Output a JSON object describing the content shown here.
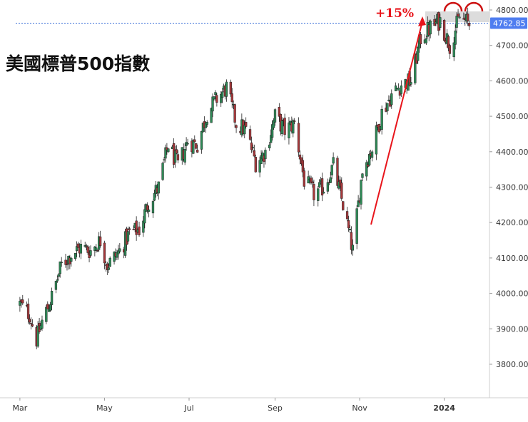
{
  "chart_data": {
    "type": "candlestick",
    "title": "美國標普500指數",
    "x_tick_labels": [
      "Mar",
      "May",
      "Jul",
      "Sep",
      "Nov",
      "2024"
    ],
    "y_tick_labels": [
      "3800.00",
      "3900.00",
      "4000.00",
      "4100.00",
      "4200.00",
      "4300.00",
      "4400.00",
      "4500.00",
      "4600.00",
      "4700.00",
      "4800.00"
    ],
    "y_ticks": [
      3800,
      3900,
      4000,
      4100,
      4200,
      4300,
      4400,
      4500,
      4600,
      4700,
      4800
    ],
    "ylim": [
      3700,
      4830
    ],
    "current_price": "4762.85",
    "annotation_text": "+15%",
    "colors": {
      "up": "#2e8b57",
      "down": "#a8383b",
      "accent": "#e8141b",
      "price_line": "#3a6fd8"
    },
    "close_series": [
      {
        "date": "2023-03-01",
        "value": 3970
      },
      {
        "date": "2023-03-08",
        "value": 3940
      },
      {
        "date": "2023-03-13",
        "value": 3870
      },
      {
        "date": "2023-03-17",
        "value": 3920
      },
      {
        "date": "2023-03-24",
        "value": 3990
      },
      {
        "date": "2023-03-31",
        "value": 4080
      },
      {
        "date": "2023-04-07",
        "value": 4110
      },
      {
        "date": "2023-04-14",
        "value": 4130
      },
      {
        "date": "2023-04-21",
        "value": 4120
      },
      {
        "date": "2023-04-28",
        "value": 4150
      },
      {
        "date": "2023-05-03",
        "value": 4080
      },
      {
        "date": "2023-05-12",
        "value": 4120
      },
      {
        "date": "2023-05-19",
        "value": 4170
      },
      {
        "date": "2023-05-26",
        "value": 4180
      },
      {
        "date": "2023-06-02",
        "value": 4260
      },
      {
        "date": "2023-06-09",
        "value": 4300
      },
      {
        "date": "2023-06-16",
        "value": 4420
      },
      {
        "date": "2023-06-23",
        "value": 4360
      },
      {
        "date": "2023-06-30",
        "value": 4430
      },
      {
        "date": "2023-07-07",
        "value": 4420
      },
      {
        "date": "2023-07-14",
        "value": 4510
      },
      {
        "date": "2023-07-21",
        "value": 4550
      },
      {
        "date": "2023-07-28",
        "value": 4580
      },
      {
        "date": "2023-08-04",
        "value": 4480
      },
      {
        "date": "2023-08-11",
        "value": 4460
      },
      {
        "date": "2023-08-18",
        "value": 4370
      },
      {
        "date": "2023-08-25",
        "value": 4400
      },
      {
        "date": "2023-09-01",
        "value": 4500
      },
      {
        "date": "2023-09-08",
        "value": 4460
      },
      {
        "date": "2023-09-15",
        "value": 4480
      },
      {
        "date": "2023-09-22",
        "value": 4320
      },
      {
        "date": "2023-09-29",
        "value": 4280
      },
      {
        "date": "2023-10-06",
        "value": 4300
      },
      {
        "date": "2023-10-13",
        "value": 4360
      },
      {
        "date": "2023-10-20",
        "value": 4250
      },
      {
        "date": "2023-10-27",
        "value": 4120
      },
      {
        "date": "2023-11-03",
        "value": 4350
      },
      {
        "date": "2023-11-10",
        "value": 4410
      },
      {
        "date": "2023-11-17",
        "value": 4510
      },
      {
        "date": "2023-11-24",
        "value": 4560
      },
      {
        "date": "2023-12-01",
        "value": 4590
      },
      {
        "date": "2023-12-08",
        "value": 4600
      },
      {
        "date": "2023-12-15",
        "value": 4720
      },
      {
        "date": "2023-12-22",
        "value": 4750
      },
      {
        "date": "2023-12-29",
        "value": 4770
      },
      {
        "date": "2024-01-05",
        "value": 4700
      },
      {
        "date": "2024-01-12",
        "value": 4780
      },
      {
        "date": "2024-01-19",
        "value": 4760
      }
    ]
  }
}
